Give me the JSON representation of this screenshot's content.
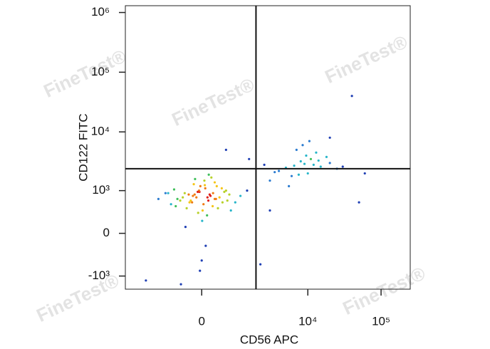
{
  "chart_data": {
    "type": "scatter",
    "x_label": "CD56 APC",
    "y_label": "CD122 FITC",
    "watermark": "FineTest®",
    "xlim": [
      -3900,
      250000
    ],
    "ylim": [
      -1700,
      1300000
    ],
    "xticks": [
      0,
      {
        "value": 10000,
        "label": "10⁴"
      },
      {
        "value": 100000,
        "label": "10⁵"
      }
    ],
    "yticks": [
      {
        "value": -1000,
        "label": "-10³"
      },
      0,
      {
        "value": 1000,
        "label": "10³"
      },
      {
        "value": 10000,
        "label": "10⁴"
      },
      {
        "value": 100000,
        "label": "10⁵"
      },
      {
        "value": 1000000,
        "label": "10⁶"
      }
    ],
    "x_scale": "biexponential",
    "y_scale": "biexponential",
    "quadrant_x": 1900,
    "quadrant_y": 2400,
    "x": [
      -200,
      150,
      -50,
      300,
      -400,
      500,
      80,
      -120,
      250,
      -300,
      600,
      -600,
      20,
      350,
      -250,
      700,
      -800,
      120,
      -60,
      420,
      -180,
      900,
      -1000,
      60,
      -350,
      200,
      480,
      -520,
      10,
      -90,
      330,
      -700,
      1100,
      -150,
      40,
      260,
      -450,
      750,
      -30,
      180,
      -1300,
      1400,
      90,
      -220,
      550,
      -650,
      300,
      -80,
      130,
      -380,
      0,
      220,
      -160,
      640,
      -900,
      70,
      380,
      -40,
      160,
      -280,
      5000,
      8000,
      12000,
      6000,
      9500,
      15000,
      4000,
      7000,
      11000,
      20000,
      3000,
      10000,
      13000,
      6500,
      8500,
      25000,
      5500,
      18000,
      9000,
      3500,
      14000,
      7500,
      30000,
      2500,
      10500,
      1500,
      40000,
      2200,
      60000,
      -2000,
      3000,
      600,
      20000,
      -500,
      50000
    ],
    "values": [
      800,
      650,
      950,
      700,
      900,
      600,
      1100,
      750,
      500,
      850,
      1000,
      700,
      400,
      1200,
      650,
      850,
      550,
      300,
      1000,
      750,
      1300,
      600,
      900,
      1500,
      450,
      800,
      1100,
      650,
      200,
      950,
      700,
      1050,
      800,
      1600,
      550,
      900,
      750,
      400,
      1200,
      850,
      700,
      1000,
      -200,
      600,
      950,
      500,
      1400,
      350,
      750,
      100,
      -500,
      1700,
      850,
      650,
      900,
      1250,
      450,
      -800,
      1900,
      600,
      2500,
      3200,
      2800,
      1800,
      4000,
      2600,
      2200,
      5000,
      3500,
      3000,
      1500,
      2000,
      4500,
      2700,
      6000,
      2400,
      1200,
      3800,
      2900,
      2100,
      3300,
      1900,
      2600,
      2800,
      7000,
      3500,
      40000,
      -600,
      2000,
      -1200,
      400,
      5000,
      8000,
      -1400,
      600
    ]
  }
}
